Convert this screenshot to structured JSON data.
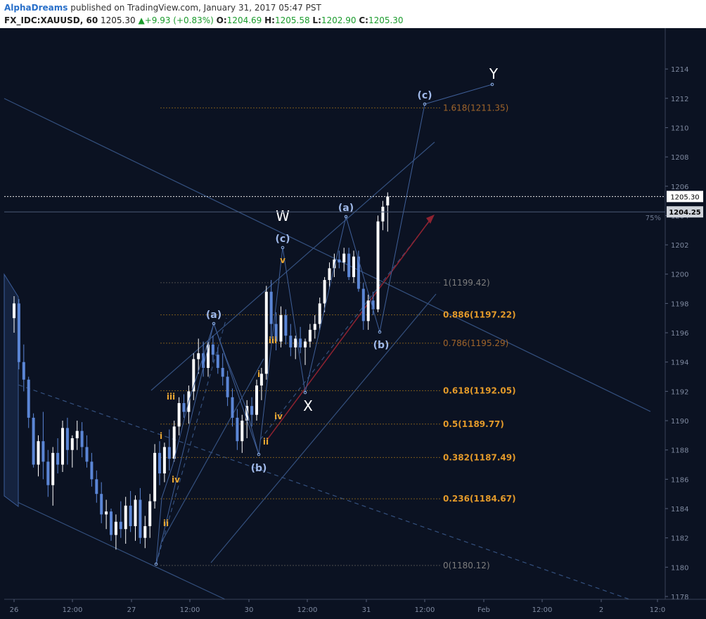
{
  "header": {
    "author": "AlphaDreams",
    "published": "published on TradingView.com, January 31, 2017 05:47 PST",
    "symbol": "FX_IDC:XAUUSD, 60",
    "last": "1205.30",
    "change": "+9.93 (+0.83%)",
    "o_label": "O:",
    "o_value": "1204.69",
    "h_label": "H:",
    "h_value": "1205.58",
    "l_label": "L:",
    "l_value": "1202.90",
    "c_label": "C:",
    "c_value": "1205.30"
  },
  "colors": {
    "background": "#0b1222",
    "bull_candle": "#ffffff",
    "bear_candle": "#5b86d6",
    "fib_level": "#b8860b",
    "wave_blue": "#9fb8e8",
    "wave_orange": "#e8a632",
    "trendline": "#34507e",
    "arrow": "#8e2230"
  },
  "chart_data": {
    "type": "candlestick",
    "symbol": "FX_IDC:XAUUSD",
    "interval": "60",
    "y_range": [
      1177,
      1216
    ],
    "y_ticks": [
      1178,
      1180,
      1182,
      1184,
      1186,
      1188,
      1190,
      1192,
      1194,
      1196,
      1198,
      1200,
      1202,
      1204,
      1206,
      1208,
      1210,
      1212,
      1214
    ],
    "x_ticks": [
      "26",
      "12:00",
      "27",
      "12:00",
      "30",
      "12:00",
      "31",
      "12:00",
      "Feb",
      "12:00",
      "2",
      "12:0"
    ],
    "price_labels": [
      {
        "text": "1205.30",
        "value": 1205.3
      },
      {
        "text": "1204.25",
        "value": 1204.25
      }
    ],
    "percent_label": "75%",
    "fib_levels": [
      {
        "label": "0(1180.12)",
        "value": 1180.12,
        "style": "muted"
      },
      {
        "label": "0.236(1184.67)",
        "value": 1184.67,
        "style": "gold"
      },
      {
        "label": "0.382(1187.49)",
        "value": 1187.49,
        "style": "gold"
      },
      {
        "label": "0.5(1189.77)",
        "value": 1189.77,
        "style": "gold"
      },
      {
        "label": "0.618(1192.05)",
        "value": 1192.05,
        "style": "gold"
      },
      {
        "label": "0.786(1195.29)",
        "value": 1195.29,
        "style": "brown"
      },
      {
        "label": "0.886(1197.22)",
        "value": 1197.22,
        "style": "gold"
      },
      {
        "label": "1(1199.42)",
        "value": 1199.42,
        "style": "muted"
      },
      {
        "label": "1.618(1211.35)",
        "value": 1211.35,
        "style": "brown"
      }
    ],
    "wave_labels": [
      {
        "text": "W",
        "color": "white"
      },
      {
        "text": "X",
        "color": "white"
      },
      {
        "text": "Y",
        "color": "white"
      },
      {
        "text": "(a)",
        "color": "blue"
      },
      {
        "text": "(b)",
        "color": "blue"
      },
      {
        "text": "(c)",
        "color": "blue"
      },
      {
        "text": "(a)",
        "color": "blue"
      },
      {
        "text": "(b)",
        "color": "blue"
      },
      {
        "text": "(c)",
        "color": "blue"
      },
      {
        "text": "i",
        "color": "orange"
      },
      {
        "text": "ii",
        "color": "orange"
      },
      {
        "text": "iii",
        "color": "orange"
      },
      {
        "text": "iv",
        "color": "orange"
      },
      {
        "text": "v",
        "color": "orange"
      },
      {
        "text": "i",
        "color": "orange"
      },
      {
        "text": "ii",
        "color": "orange"
      },
      {
        "text": "iii",
        "color": "orange"
      },
      {
        "text": "iv",
        "color": "orange"
      }
    ]
  }
}
